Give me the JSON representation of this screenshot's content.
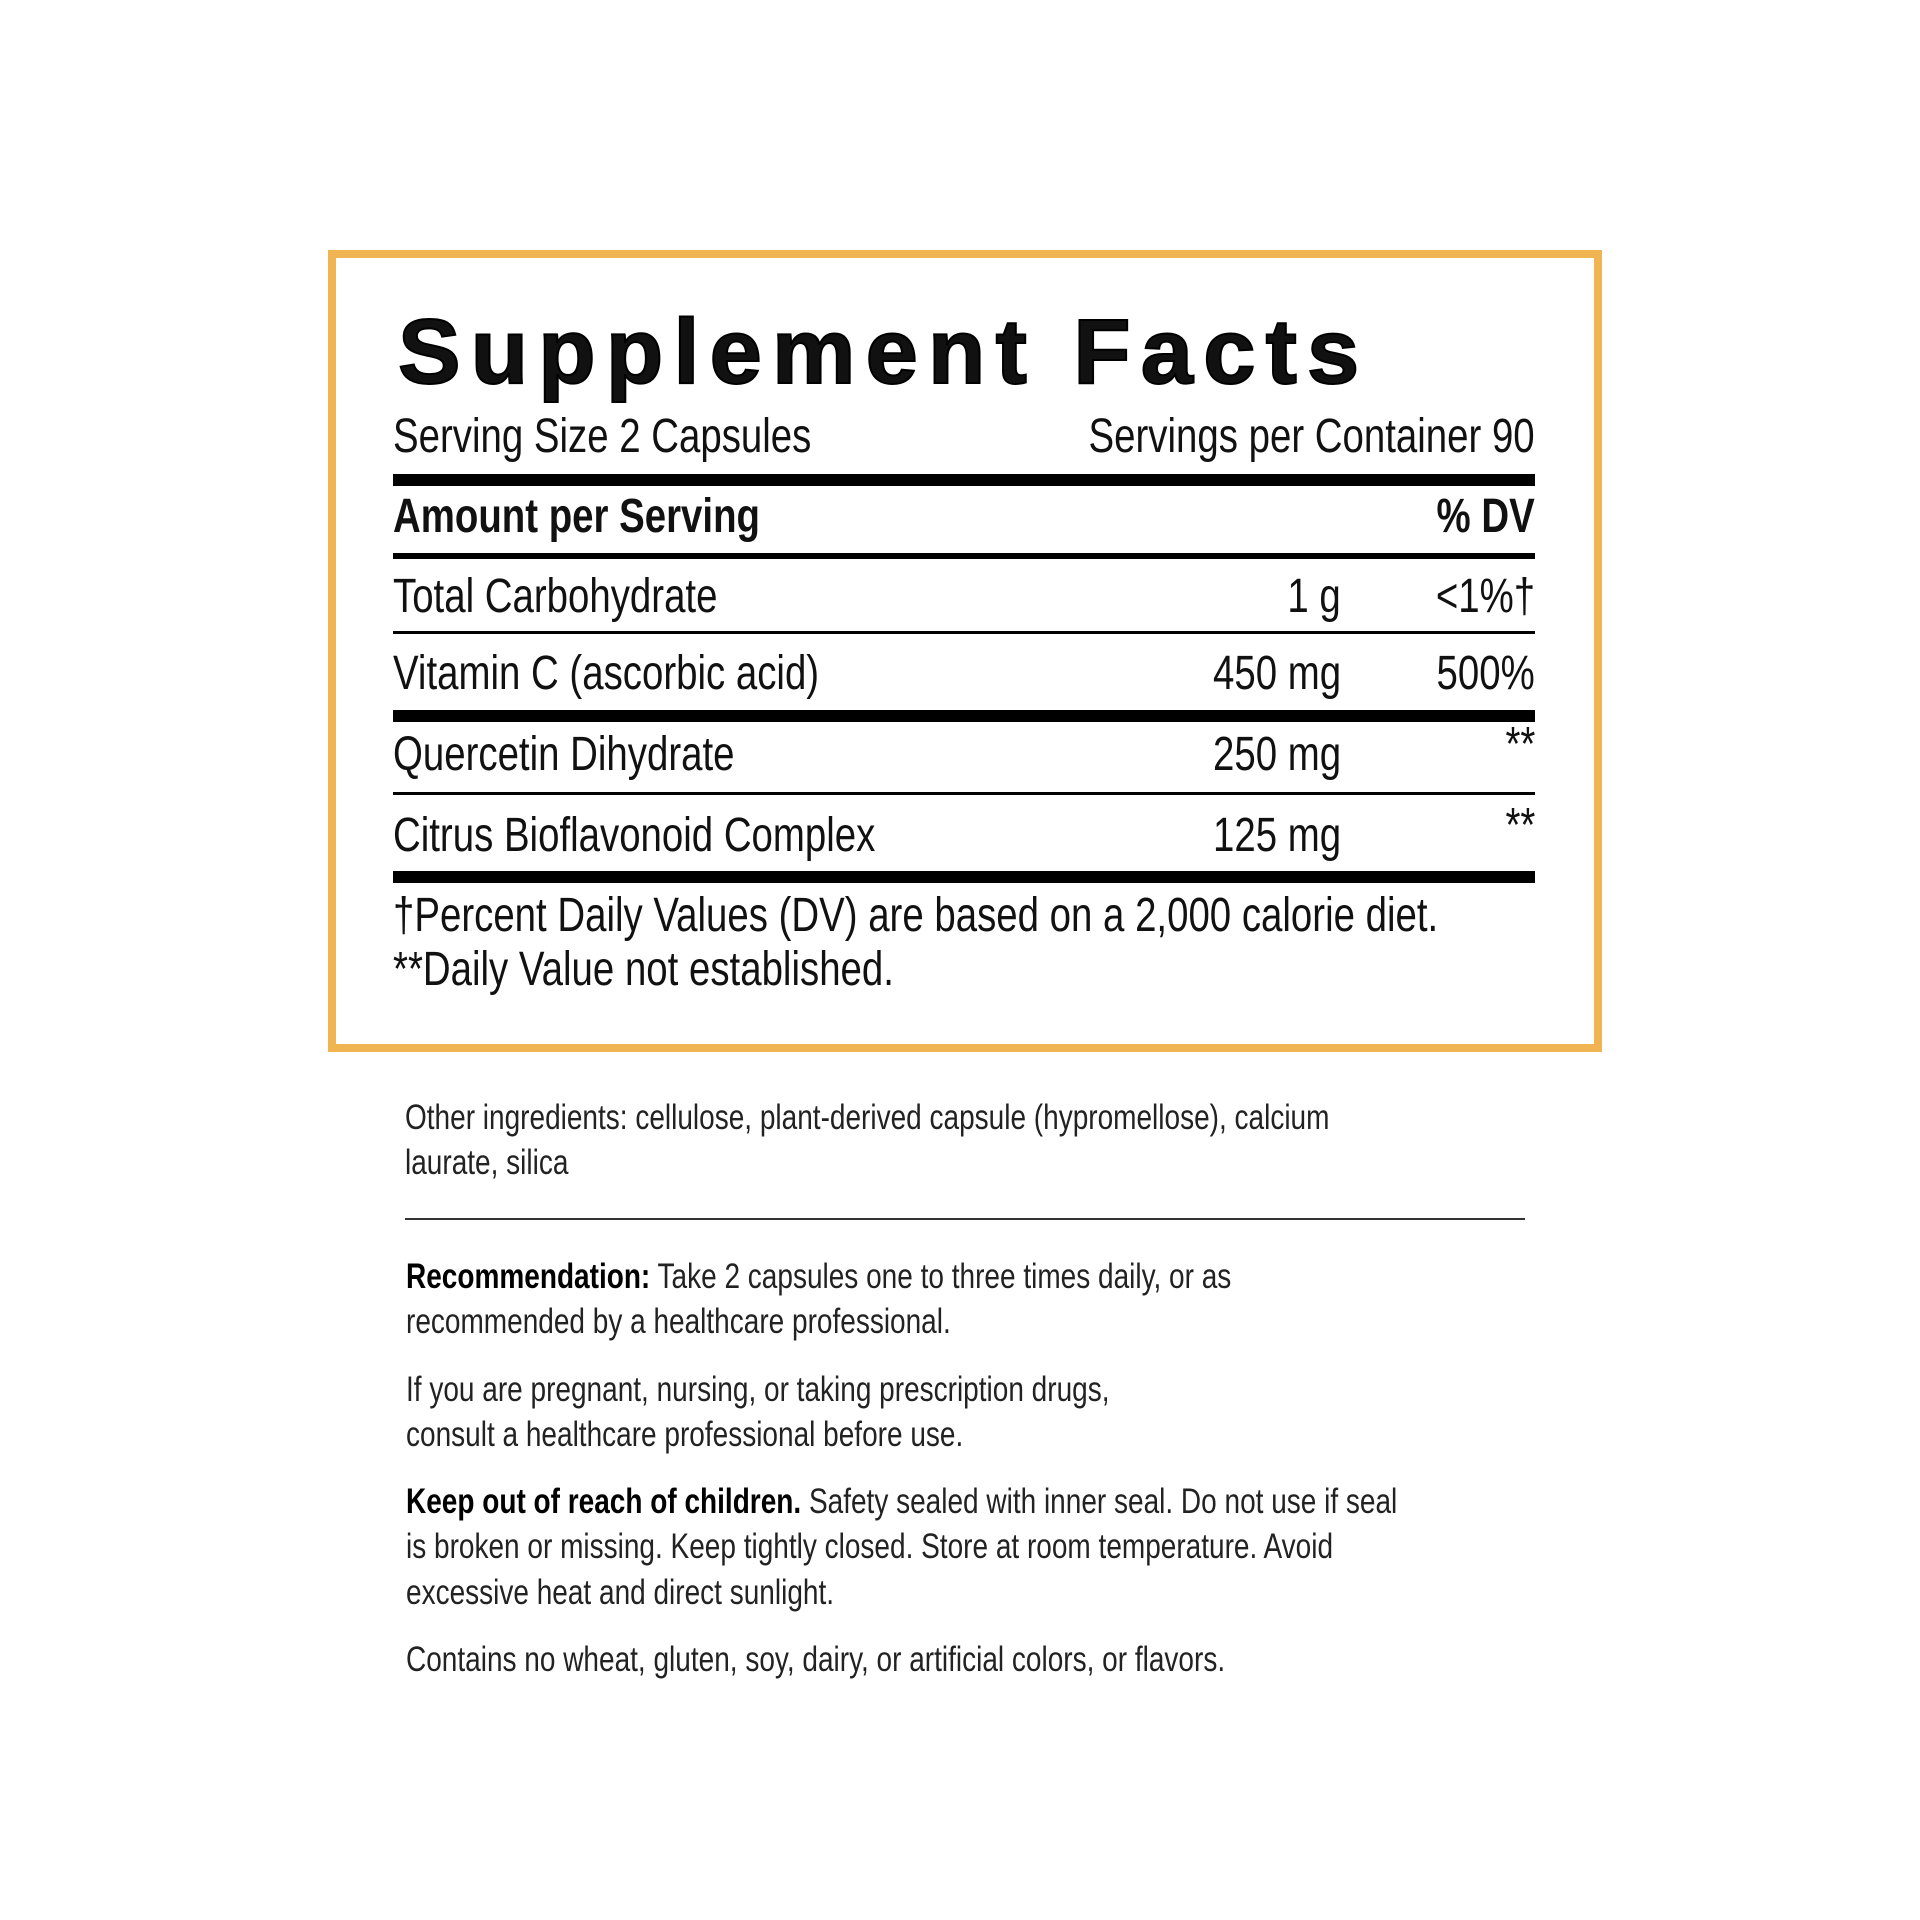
{
  "panel": {
    "title": "Supplement Facts",
    "serving_size": "Serving Size 2 Capsules",
    "servings_per_container": "Servings per Container 90",
    "header_amount": "Amount per Serving",
    "header_dv": "% DV",
    "rows": [
      {
        "name": "Total Carbohydrate",
        "amount": "1 g",
        "dv": "<1%†"
      },
      {
        "name": "Vitamin C (ascorbic acid)",
        "amount": "450 mg",
        "dv": "500%"
      },
      {
        "name": "Quercetin Dihydrate",
        "amount": "250 mg",
        "dv": "**"
      },
      {
        "name": "Citrus Bioflavonoid Complex",
        "amount": "125 mg",
        "dv": "**"
      }
    ],
    "footnote_1": "†Percent Daily Values (DV) are based on a 2,000 calorie diet.",
    "footnote_2": "**Daily Value not established.",
    "border_color": "#f0b552"
  },
  "other_ingredients_line1": "Other ingredients: cellulose, plant-derived capsule (hypromellose), calcium",
  "other_ingredients_line2": "laurate, silica",
  "recommendation": {
    "label": "Recommendation:",
    "line1": " Take 2 capsules one to three times daily, or as",
    "line2": "recommended by a healthcare professional."
  },
  "warning": {
    "line1": "If you are pregnant, nursing, or taking prescription drugs,",
    "line2": "consult a healthcare professional before use."
  },
  "storage": {
    "label": "Keep out of reach of children.",
    "line1": " Safety sealed with inner seal. Do not use if seal",
    "line2": "is broken or missing. Keep tightly closed. Store at room temperature. Avoid",
    "line3": "excessive heat and direct sunlight."
  },
  "allergens": "Contains no wheat, gluten, soy, dairy, or artificial colors, or flavors."
}
